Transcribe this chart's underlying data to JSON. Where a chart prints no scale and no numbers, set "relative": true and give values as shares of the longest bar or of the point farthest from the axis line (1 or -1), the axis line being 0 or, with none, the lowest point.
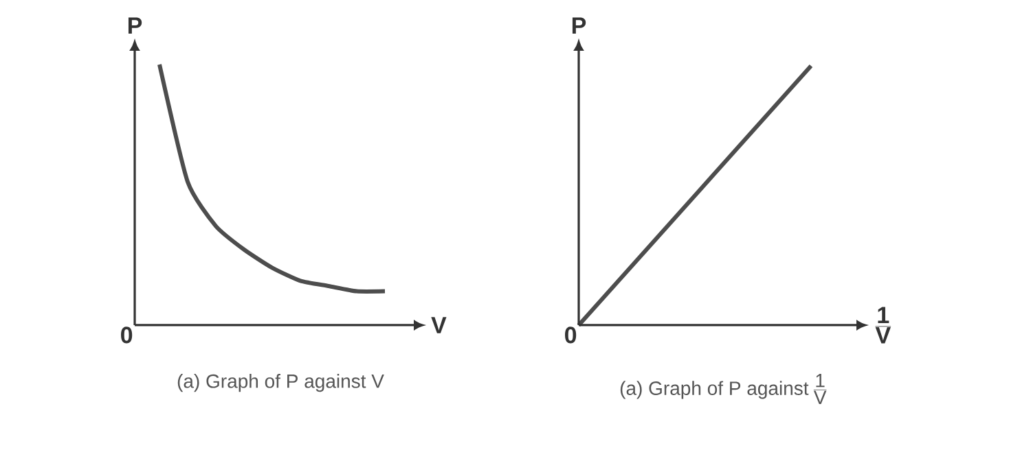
{
  "chart_data": [
    {
      "type": "line",
      "relative": true,
      "categories": [
        null,
        null,
        null,
        null,
        null,
        null,
        null,
        null,
        null
      ],
      "values": [
        1,
        0.55,
        0.38,
        0.29,
        0.22,
        0.17,
        0.15,
        0.13,
        0.13
      ],
      "color": "#4d4d4d",
      "xlabel": "V",
      "ylabel": "P",
      "title": "(a) Graph of P against V",
      "annotations": [
        "0"
      ]
    },
    {
      "type": "line",
      "relative": true,
      "categories": [
        null,
        null
      ],
      "values": [
        0,
        1
      ],
      "color": "#4d4d4d",
      "xlabel": "\\frac{\\mbox{\\bfseries 1}}{\\mbox{\\bfseries V}}",
      "ylabel": "P",
      "title": "\\mbox{(a) Graph of P against}\\,\\frac{\\mbox{1}}{\\mbox{V}}",
      "annotations": [
        "0"
      ]
    }
  ]
}
